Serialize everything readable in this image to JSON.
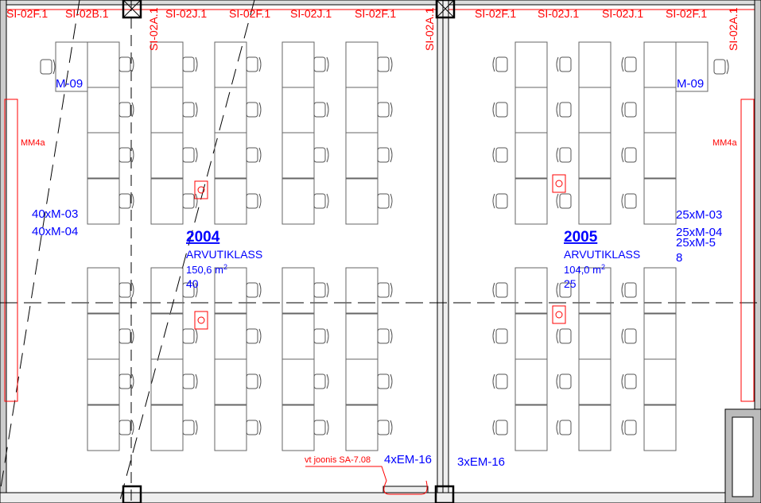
{
  "drawing": {
    "top_tags": [
      "SI-02F.1",
      "SI-02B.1",
      "SI-02J.1",
      "SI-02F.1",
      "SI-02J.1",
      "SI-02F.1",
      "SI-02F.1",
      "SI-02J.1",
      "SI-02J.1",
      "SI-02F.1"
    ],
    "vertical_tags": [
      "SI-02A.1",
      "SI-02A.1",
      "SI-02A.1"
    ],
    "mm_tag_left": "MM4a",
    "mm_tag_right": "MM4a",
    "rooms": [
      {
        "number": "2004",
        "name": "ARVUTIKLASS",
        "area": "150,6 m",
        "area_sup": "2",
        "seats": "40",
        "equipment": [
          "40xM-03",
          "40xM-04"
        ],
        "teacher_equipment": "M-09",
        "floor_equipment": "4xEM-16"
      },
      {
        "number": "2005",
        "name": "ARVUTIKLASS",
        "area": "104,0 m",
        "area_sup": "2",
        "seats": "25",
        "equipment": [
          "25xM-03",
          "25xM-04",
          "25xM-5",
          "8"
        ],
        "teacher_equipment": "M-09",
        "floor_equipment": "3xEM-16"
      }
    ],
    "reference_note": "vt joonis SA-7.08",
    "colors": {
      "annotation": "#ff0000",
      "equipment": "#0000ff",
      "lines": "#000000",
      "furniture": "#555555"
    }
  }
}
